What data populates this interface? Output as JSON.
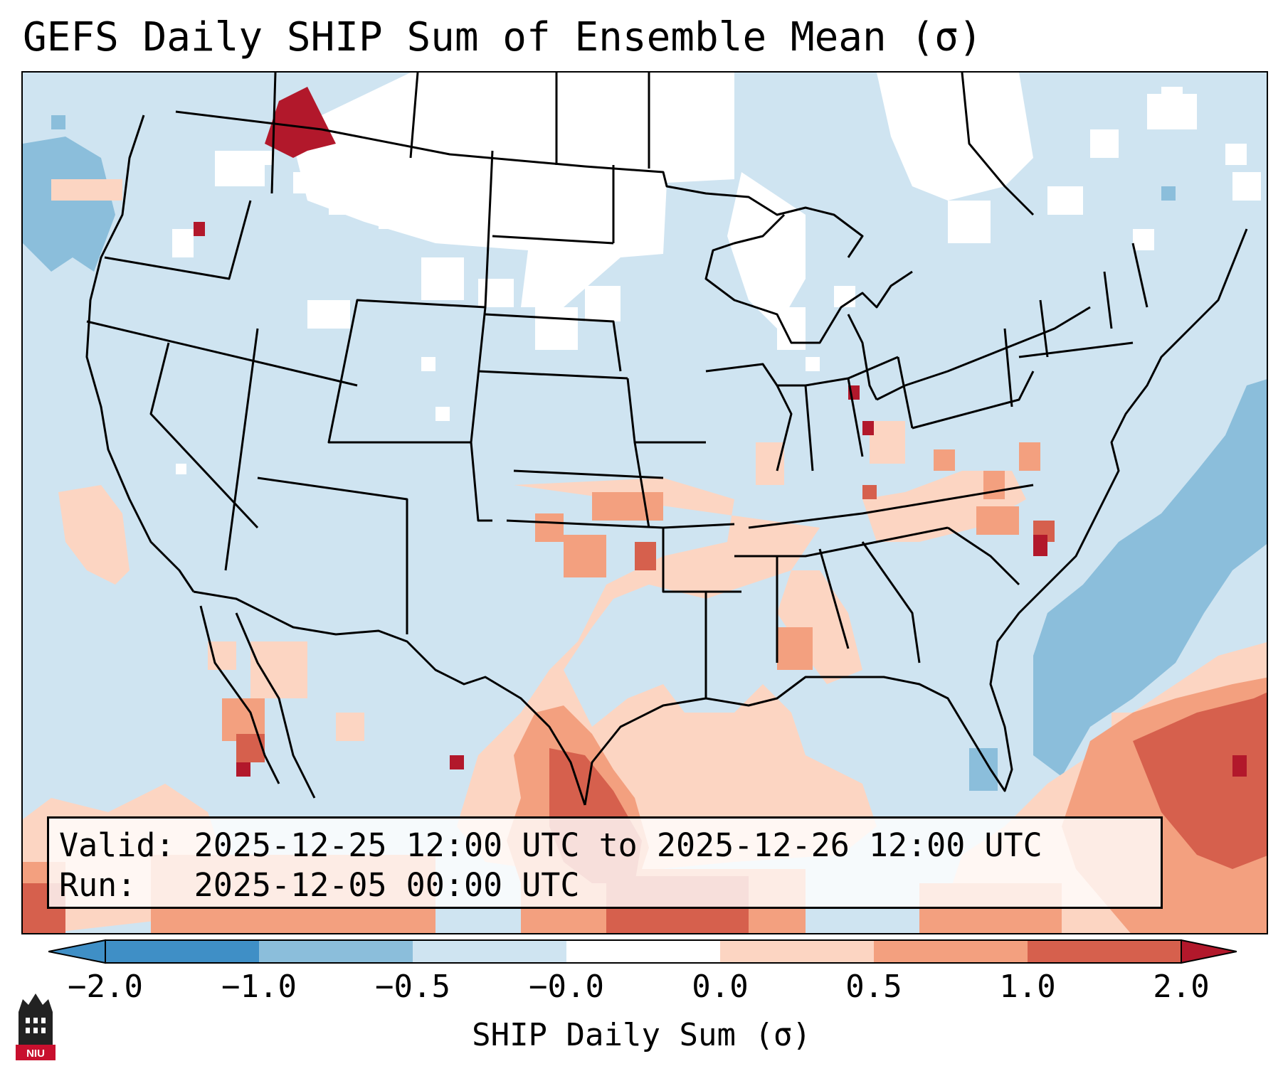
{
  "title": "GEFS Daily SHIP Sum of Ensemble Mean (σ)",
  "info": {
    "valid_line": "Valid: 2025-12-25 12:00 UTC to 2025-12-26 12:00 UTC",
    "run_line": "Run:   2025-12-05 00:00 UTC"
  },
  "colorbar": {
    "label": "SHIP Daily Sum (σ)",
    "ticks": [
      "−2.0",
      "−1.0",
      "−0.5",
      "−0.0",
      "0.0",
      "0.5",
      "1.0",
      "2.0"
    ],
    "colors": [
      "#3f8fc6",
      "#8bbedb",
      "#cfe4f1",
      "#ffffff",
      "#fcd5c2",
      "#f3a07f",
      "#d6604d",
      "#b2182b"
    ]
  },
  "map": {
    "background_color": "#cfe4f1",
    "white_color": "#ffffff",
    "border_color": "#000000"
  },
  "logo": {
    "text": "NIU",
    "color": "#c8102e"
  }
}
